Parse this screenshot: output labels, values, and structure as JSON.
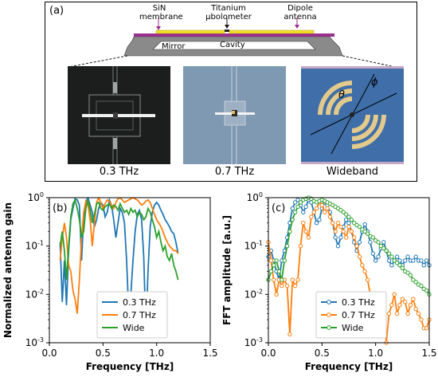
{
  "panel_a": {
    "label": "(a)",
    "cross_section": {
      "sin_label_line1": "SiN",
      "sin_label_line2": "membrane",
      "bolo_label_line1": "Titanium",
      "bolo_label_line2": "µbolometer",
      "dipole_label_line1": "Dipole",
      "dipole_label_line2": "antenna",
      "mirror_label": "Mirror",
      "cavity_label": "Cavity"
    },
    "photos": [
      {
        "caption": "0.3 THz"
      },
      {
        "caption": "0.7 THz"
      },
      {
        "caption": "Wideband"
      }
    ],
    "wideband_angles": {
      "theta": "θ",
      "phi": "ϕ"
    },
    "colors": {
      "membrane": "#9b2d8e",
      "antenna": "#f2e02a",
      "substrate": "#7a7a7a",
      "arrow": "#9b2d8e"
    }
  },
  "chart_data": [
    {
      "type": "line",
      "panel_label": "(b)",
      "xlabel": "Frequency [THz]",
      "ylabel": "Normalized antenna gain",
      "xlim": [
        0.0,
        1.5
      ],
      "ylim": [
        0.001,
        1
      ],
      "yscale": "log",
      "x_ticks": [
        "0.0",
        "0.5",
        "1.0",
        "1.5"
      ],
      "legend_position": "bottom-center",
      "series": [
        {
          "name": "0.3 THz",
          "color": "#1f77b4",
          "x": [
            0.1,
            0.12,
            0.14,
            0.16,
            0.18,
            0.2,
            0.22,
            0.24,
            0.26,
            0.28,
            0.3,
            0.32,
            0.34,
            0.36,
            0.38,
            0.4,
            0.42,
            0.44,
            0.46,
            0.48,
            0.5,
            0.52,
            0.54,
            0.56,
            0.58,
            0.6,
            0.62,
            0.64,
            0.66,
            0.68,
            0.7,
            0.72,
            0.74,
            0.76,
            0.78,
            0.8,
            0.82,
            0.84,
            0.86,
            0.88,
            0.9,
            0.92,
            0.94,
            0.96,
            0.98,
            1.0,
            1.02,
            1.04,
            1.06,
            1.08,
            1.1,
            1.12,
            1.14,
            1.16,
            1.18,
            1.2
          ],
          "y": [
            0.12,
            0.007,
            0.05,
            0.006,
            0.08,
            0.35,
            0.6,
            0.95,
            0.9,
            0.7,
            0.05,
            0.4,
            0.8,
            1.0,
            0.7,
            0.5,
            0.25,
            0.35,
            0.6,
            0.8,
            0.7,
            0.4,
            0.5,
            0.9,
            0.7,
            0.35,
            0.15,
            0.3,
            0.6,
            0.5,
            0.3,
            0.05,
            0.004,
            0.01,
            0.05,
            0.2,
            0.45,
            0.55,
            0.35,
            0.06,
            0.0018,
            0.03,
            0.25,
            0.5,
            0.7,
            0.8,
            0.7,
            0.55,
            0.45,
            0.35,
            0.3,
            0.25,
            0.2,
            0.18,
            0.12,
            0.07
          ]
        },
        {
          "name": "0.7 THz",
          "color": "#ff7f0e",
          "x": [
            0.1,
            0.12,
            0.14,
            0.16,
            0.18,
            0.2,
            0.22,
            0.24,
            0.26,
            0.28,
            0.3,
            0.32,
            0.34,
            0.36,
            0.38,
            0.4,
            0.42,
            0.44,
            0.46,
            0.48,
            0.5,
            0.52,
            0.54,
            0.56,
            0.58,
            0.6,
            0.62,
            0.64,
            0.66,
            0.68,
            0.7,
            0.72,
            0.74,
            0.76,
            0.78,
            0.8,
            0.82,
            0.84,
            0.86,
            0.88,
            0.9,
            0.92,
            0.94,
            0.96,
            0.98,
            1.0,
            1.02,
            1.04,
            1.06,
            1.08,
            1.1,
            1.12,
            1.14,
            1.16,
            1.18,
            1.2
          ],
          "y": [
            0.05,
            0.15,
            0.3,
            0.15,
            0.04,
            0.03,
            0.012,
            0.008,
            0.004,
            0.02,
            0.15,
            0.5,
            0.85,
            0.7,
            0.35,
            0.1,
            0.3,
            0.8,
            1.0,
            0.8,
            0.6,
            0.75,
            0.9,
            0.85,
            0.7,
            0.6,
            0.8,
            0.95,
            1.0,
            0.9,
            0.8,
            0.85,
            0.9,
            0.95,
            1.0,
            0.95,
            0.9,
            0.8,
            0.7,
            0.75,
            0.85,
            0.9,
            0.8,
            0.6,
            0.45,
            0.35,
            0.3,
            0.25,
            0.2,
            0.15,
            0.12,
            0.1,
            0.09,
            0.08,
            0.08,
            0.07
          ]
        },
        {
          "name": "Wide",
          "color": "#2ca02c",
          "x": [
            0.1,
            0.12,
            0.14,
            0.16,
            0.18,
            0.2,
            0.22,
            0.24,
            0.26,
            0.28,
            0.3,
            0.32,
            0.34,
            0.36,
            0.38,
            0.4,
            0.42,
            0.44,
            0.46,
            0.48,
            0.5,
            0.52,
            0.54,
            0.56,
            0.58,
            0.6,
            0.62,
            0.64,
            0.66,
            0.68,
            0.7,
            0.72,
            0.74,
            0.76,
            0.78,
            0.8,
            0.82,
            0.84,
            0.86,
            0.88,
            0.9,
            0.92,
            0.94,
            0.96,
            0.98,
            1.0,
            1.02,
            1.04,
            1.06,
            1.08,
            1.1,
            1.12,
            1.14,
            1.16,
            1.18,
            1.2
          ],
          "y": [
            0.1,
            0.2,
            0.08,
            0.02,
            0.1,
            0.4,
            0.75,
            0.9,
            0.6,
            0.35,
            0.15,
            0.2,
            0.6,
            0.9,
            0.55,
            0.3,
            0.45,
            0.75,
            0.8,
            0.6,
            0.55,
            0.65,
            0.7,
            0.75,
            0.6,
            0.7,
            0.65,
            0.55,
            0.75,
            0.6,
            0.5,
            0.55,
            0.45,
            0.6,
            0.5,
            0.55,
            0.4,
            0.5,
            0.45,
            0.35,
            0.4,
            0.6,
            0.5,
            0.35,
            0.25,
            0.15,
            0.2,
            0.12,
            0.08,
            0.1,
            0.06,
            0.05,
            0.07,
            0.04,
            0.03,
            0.02
          ]
        }
      ]
    },
    {
      "type": "line",
      "panel_label": "(c)",
      "xlabel": "Frequency [THz]",
      "ylabel": "FFT amplitude [a.u.]",
      "xlim": [
        0.0,
        1.5
      ],
      "ylim": [
        0.001,
        1
      ],
      "yscale": "log",
      "x_ticks": [
        "0.0",
        "0.5",
        "1.0",
        "1.5"
      ],
      "markers": "open-circle",
      "legend_position": "bottom-center",
      "series": [
        {
          "name": "0.3 THz",
          "color": "#1f77b4",
          "x": [
            0.0,
            0.025,
            0.05,
            0.075,
            0.1,
            0.125,
            0.15,
            0.175,
            0.2,
            0.225,
            0.25,
            0.275,
            0.3,
            0.325,
            0.35,
            0.375,
            0.4,
            0.425,
            0.45,
            0.475,
            0.5,
            0.525,
            0.55,
            0.575,
            0.6,
            0.625,
            0.65,
            0.675,
            0.7,
            0.725,
            0.75,
            0.775,
            0.8,
            0.825,
            0.85,
            0.875,
            0.9,
            0.925,
            0.95,
            0.975,
            1.0,
            1.025,
            1.05,
            1.075,
            1.1,
            1.125,
            1.15,
            1.175,
            1.2,
            1.225,
            1.25,
            1.275,
            1.3,
            1.325,
            1.35,
            1.375,
            1.4,
            1.425,
            1.45,
            1.475,
            1.5
          ],
          "y": [
            0.06,
            0.08,
            0.05,
            0.03,
            0.02,
            0.05,
            0.08,
            0.15,
            0.3,
            0.6,
            0.8,
            0.9,
            0.7,
            0.5,
            0.65,
            0.9,
            0.8,
            0.5,
            0.3,
            0.35,
            0.6,
            0.8,
            0.7,
            0.5,
            0.3,
            0.15,
            0.1,
            0.15,
            0.25,
            0.35,
            0.3,
            0.2,
            0.12,
            0.08,
            0.12,
            0.2,
            0.28,
            0.2,
            0.12,
            0.07,
            0.05,
            0.06,
            0.09,
            0.12,
            0.08,
            0.05,
            0.04,
            0.05,
            0.06,
            0.05,
            0.04,
            0.05,
            0.06,
            0.05,
            0.05,
            0.06,
            0.05,
            0.05,
            0.04,
            0.05,
            0.04
          ]
        },
        {
          "name": "0.7 THz",
          "color": "#ff7f0e",
          "x": [
            0.0,
            0.025,
            0.05,
            0.075,
            0.1,
            0.125,
            0.15,
            0.175,
            0.2,
            0.225,
            0.25,
            0.275,
            0.3,
            0.325,
            0.35,
            0.375,
            0.4,
            0.425,
            0.45,
            0.475,
            0.5,
            0.525,
            0.55,
            0.575,
            0.6,
            0.625,
            0.65,
            0.675,
            0.7,
            0.725,
            0.75,
            0.775,
            0.8,
            0.825,
            0.85,
            0.875,
            0.9,
            0.925,
            0.95,
            0.975,
            1.0,
            1.025,
            1.05,
            1.075,
            1.1,
            1.125,
            1.15,
            1.175,
            1.2,
            1.225,
            1.25,
            1.275,
            1.3,
            1.325,
            1.35,
            1.375,
            1.4,
            1.425,
            1.45,
            1.475,
            1.5
          ],
          "y": [
            0.12,
            0.05,
            0.02,
            0.01,
            0.02,
            0.015,
            0.02,
            0.015,
            0.0015,
            0.02,
            0.015,
            0.02,
            0.1,
            0.3,
            0.2,
            0.15,
            0.4,
            0.5,
            0.6,
            0.8,
            0.7,
            0.5,
            0.6,
            0.4,
            0.3,
            0.2,
            0.3,
            0.25,
            0.2,
            0.15,
            0.25,
            0.2,
            0.15,
            0.1,
            0.06,
            0.04,
            0.03,
            0.02,
            0.01,
            0.008,
            0.01,
            0.005,
            0.009,
            0.006,
            0.001,
            0.004,
            0.006,
            0.01,
            0.004,
            0.006,
            0.008,
            0.007,
            0.004,
            0.006,
            0.008,
            0.005,
            0.004,
            0.003,
            0.002,
            0.002,
            0.003
          ]
        },
        {
          "name": "Wide",
          "color": "#2ca02c",
          "x": [
            0.0,
            0.025,
            0.05,
            0.075,
            0.1,
            0.125,
            0.15,
            0.175,
            0.2,
            0.225,
            0.25,
            0.275,
            0.3,
            0.325,
            0.35,
            0.375,
            0.4,
            0.425,
            0.45,
            0.475,
            0.5,
            0.525,
            0.55,
            0.575,
            0.6,
            0.625,
            0.65,
            0.675,
            0.7,
            0.725,
            0.75,
            0.775,
            0.8,
            0.825,
            0.85,
            0.875,
            0.9,
            0.925,
            0.95,
            0.975,
            1.0,
            1.025,
            1.05,
            1.075,
            1.1,
            1.125,
            1.15,
            1.175,
            1.2,
            1.225,
            1.25,
            1.275,
            1.3,
            1.325,
            1.35,
            1.375,
            1.4,
            1.425,
            1.45,
            1.475,
            1.5
          ],
          "y": [
            0.02,
            0.03,
            0.04,
            0.05,
            0.03,
            0.02,
            0.05,
            0.1,
            0.2,
            0.35,
            0.5,
            0.65,
            0.8,
            0.9,
            0.95,
            1.0,
            0.95,
            0.85,
            0.8,
            0.85,
            0.9,
            0.85,
            0.8,
            0.75,
            0.7,
            0.65,
            0.6,
            0.55,
            0.5,
            0.45,
            0.4,
            0.35,
            0.3,
            0.27,
            0.25,
            0.22,
            0.2,
            0.18,
            0.16,
            0.15,
            0.13,
            0.12,
            0.1,
            0.09,
            0.08,
            0.07,
            0.06,
            0.05,
            0.045,
            0.04,
            0.035,
            0.03,
            0.028,
            0.025,
            0.02,
            0.018,
            0.016,
            0.015,
            0.013,
            0.012,
            0.01
          ]
        }
      ]
    }
  ]
}
